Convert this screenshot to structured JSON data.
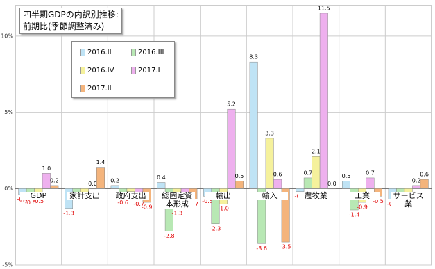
{
  "chart_data": {
    "type": "bar",
    "title": [
      "四半期GDPの内訳別推移:",
      "前期比(季節調整済み)"
    ],
    "categories": [
      "GDP",
      "家計支出",
      "政府支出",
      "総固定資本形成",
      "輸出",
      "輸入",
      "農牧業",
      "工業",
      "サービス業"
    ],
    "series": [
      {
        "name": "2016.II",
        "color": "#bfe3f5",
        "values": [
          -0.4,
          -1.3,
          0.2,
          0.4,
          -0.5,
          8.3,
          -0.2,
          0.5,
          -0.7
        ],
        "value_labels": [
          "-0.4",
          "-1.3",
          "0.2",
          "0.4",
          "-0.5",
          "8.3",
          "-0.2",
          "0.5",
          "-0.7"
        ]
      },
      {
        "name": "2016.III",
        "color": "#b8e8b4",
        "values": [
          -0.6,
          -0.3,
          -0.6,
          -2.8,
          -2.3,
          -3.6,
          0.7,
          -1.4,
          -0.5
        ],
        "value_labels": [
          "-0.6",
          "-0.3",
          "-0.6",
          "-2.8",
          "-2.3",
          "-3.6",
          "0.7",
          "-1.4",
          "-0.5"
        ]
      },
      {
        "name": "2016.IV",
        "color": "#f5f19c",
        "values": [
          -0.5,
          -0.3,
          -0.2,
          -1.3,
          -1.0,
          3.3,
          2.1,
          -0.9,
          -0.7
        ],
        "value_labels": [
          "-0.5",
          "-0.3",
          "-0.2",
          "-1.3",
          "-1.0",
          "3.3",
          "2.1",
          "-0.9",
          "-0.7"
        ]
      },
      {
        "name": "2017.I",
        "color": "#eeb0ee",
        "values": [
          1.0,
          0.0,
          -0.7,
          -0.9,
          5.2,
          0.6,
          11.5,
          0.7,
          0.2
        ],
        "value_labels": [
          "1.0",
          "0.0",
          "-0.7",
          "-0.9",
          "5.2",
          "0.6",
          "11.5",
          "0.7",
          "0.2"
        ]
      },
      {
        "name": "2017.II",
        "color": "#f4b47c",
        "values": [
          0.2,
          1.4,
          -0.9,
          -0.7,
          0.5,
          -3.5,
          0.0,
          -0.5,
          0.6
        ],
        "value_labels": [
          "0.2",
          "1.4",
          "-0.9",
          "-0.7",
          "0.5",
          "-3.5",
          "0.0",
          "-0.5",
          "0.6"
        ]
      }
    ],
    "ylim": [
      -5,
      12
    ],
    "yticks": [
      {
        "value": -5,
        "label": "-5%"
      },
      {
        "value": 0,
        "label": "0%"
      },
      {
        "value": 5,
        "label": "5%"
      },
      {
        "value": 10,
        "label": "10%"
      }
    ],
    "grid": true
  }
}
